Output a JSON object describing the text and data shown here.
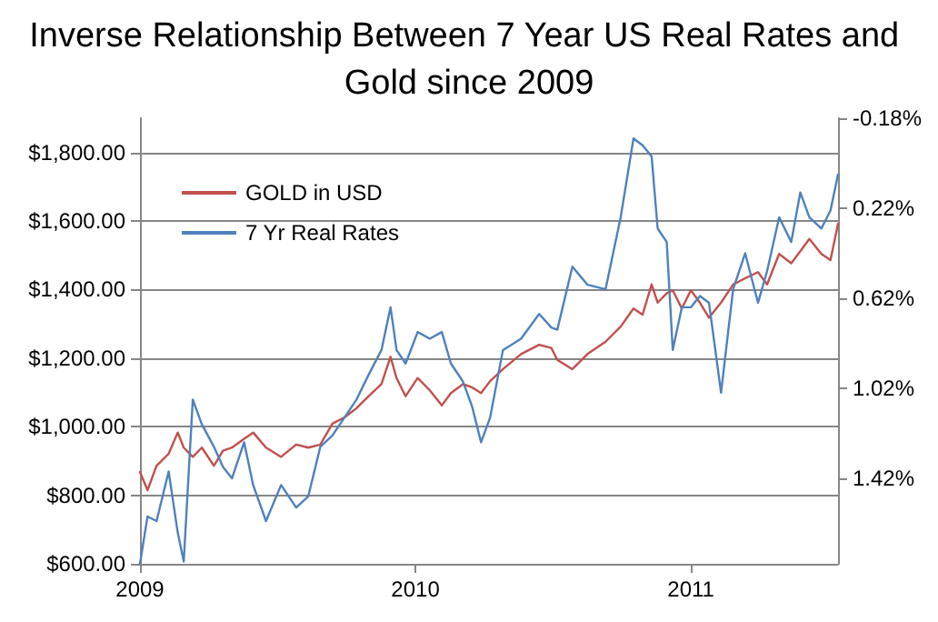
{
  "chart_data": {
    "type": "line",
    "title": "Inverse Relationship Between 7 Year US Real Rates and Gold since 2009",
    "x": [
      "2009-01-01",
      "2009-01-11",
      "2009-01-23",
      "2009-02-08",
      "2009-02-20",
      "2009-02-28",
      "2009-03-12",
      "2009-03-24",
      "2009-04-09",
      "2009-04-21",
      "2009-05-03",
      "2009-05-19",
      "2009-05-31",
      "2009-06-17",
      "2009-07-07",
      "2009-07-27",
      "2009-08-12",
      "2009-08-28",
      "2009-09-13",
      "2009-09-29",
      "2009-10-15",
      "2009-10-31",
      "2009-11-17",
      "2009-11-29",
      "2009-12-07",
      "2009-12-19",
      "2010-01-04",
      "2010-01-20",
      "2010-02-05",
      "2010-02-17",
      "2010-03-05",
      "2010-03-17",
      "2010-03-29",
      "2010-04-10",
      "2010-04-27",
      "2010-05-21",
      "2010-06-14",
      "2010-06-30",
      "2010-07-08",
      "2010-07-28",
      "2010-08-17",
      "2010-09-10",
      "2010-09-30",
      "2010-10-17",
      "2010-10-29",
      "2010-11-10",
      "2010-11-18",
      "2010-11-30",
      "2010-12-08",
      "2010-12-20",
      "2011-01-01",
      "2011-01-13",
      "2011-01-25",
      "2011-02-10",
      "2011-02-26",
      "2011-03-14",
      "2011-03-31",
      "2011-04-12",
      "2011-04-28",
      "2011-05-14",
      "2011-05-26",
      "2011-06-07",
      "2011-06-23",
      "2011-07-05",
      "2011-07-15"
    ],
    "series": [
      {
        "name": "GOLD in USD",
        "color": "#c0504d",
        "values": [
          868,
          815,
          886,
          921,
          983,
          939,
          912,
          939,
          886,
          930,
          939,
          965,
          983,
          939,
          912,
          948,
          939,
          948,
          1009,
          1027,
          1054,
          1089,
          1124,
          1204,
          1142,
          1089,
          1142,
          1106,
          1062,
          1098,
          1124,
          1115,
          1098,
          1133,
          1168,
          1212,
          1239,
          1230,
          1195,
          1168,
          1212,
          1248,
          1292,
          1345,
          1327,
          1415,
          1362,
          1389,
          1398,
          1345,
          1398,
          1362,
          1318,
          1362,
          1415,
          1433,
          1451,
          1415,
          1504,
          1477,
          1512,
          1548,
          1504,
          1486,
          1592
        ]
      },
      {
        "name": "7 Yr Real Rates",
        "color": "#4f81bd",
        "axis": "y2",
        "values": [
          1.8,
          1.59,
          1.61,
          1.39,
          1.66,
          1.79,
          1.07,
          1.18,
          1.28,
          1.37,
          1.42,
          1.26,
          1.45,
          1.61,
          1.45,
          1.55,
          1.5,
          1.28,
          1.23,
          1.15,
          1.07,
          0.96,
          0.85,
          0.66,
          0.85,
          0.91,
          0.77,
          0.8,
          0.77,
          0.91,
          0.99,
          1.1,
          1.26,
          1.15,
          0.85,
          0.8,
          0.69,
          0.75,
          0.76,
          0.48,
          0.56,
          0.58,
          0.26,
          -0.09,
          -0.06,
          -0.01,
          0.31,
          0.37,
          0.85,
          0.66,
          0.66,
          0.61,
          0.64,
          1.04,
          0.58,
          0.42,
          0.64,
          0.5,
          0.26,
          0.37,
          0.15,
          0.26,
          0.31,
          0.23,
          0.07
        ]
      }
    ],
    "xlim": [
      "2009-01-01",
      "2011-07-15"
    ],
    "xticks": [
      "2009",
      "2010",
      "2011"
    ],
    "ylim": [
      600,
      1900
    ],
    "yticks": [
      {
        "value": 600,
        "label": "$600.00"
      },
      {
        "value": 800,
        "label": "$800.00"
      },
      {
        "value": 1000,
        "label": "$1,000.00"
      },
      {
        "value": 1200,
        "label": "$1,200.00"
      },
      {
        "value": 1400,
        "label": "$1,400.00"
      },
      {
        "value": 1600,
        "label": "$1,600.00"
      },
      {
        "value": 1800,
        "label": "$1,800.00"
      }
    ],
    "y2lim": [
      1.8,
      -0.18
    ],
    "y2ticks": [
      {
        "value": -0.18,
        "label": "-0.18%"
      },
      {
        "value": 0.22,
        "label": "0.22%"
      },
      {
        "value": 0.62,
        "label": "0.62%"
      },
      {
        "value": 1.02,
        "label": "1.02%"
      },
      {
        "value": 1.42,
        "label": "1.42%"
      }
    ],
    "grid": "y",
    "legend": "top left",
    "marker": "none",
    "line_style": "solid"
  }
}
